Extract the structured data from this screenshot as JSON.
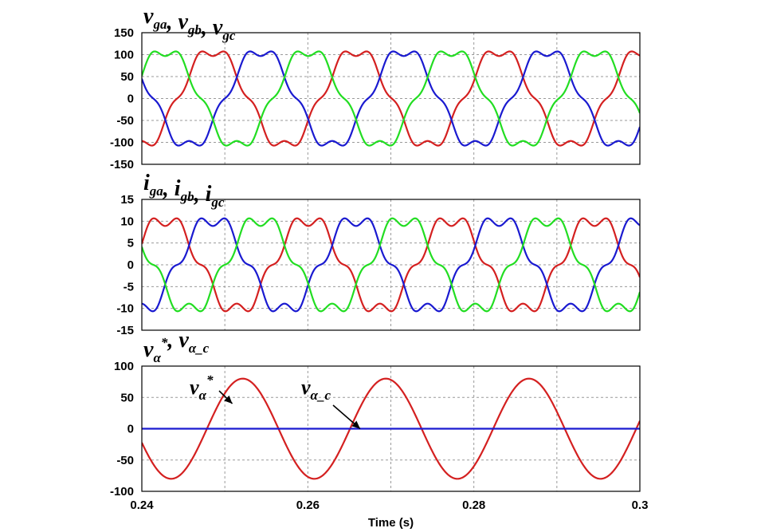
{
  "chart_data": [
    {
      "type": "line",
      "title_parts": [
        {
          "base": "v",
          "sub": "ga"
        },
        {
          "sep": ","
        },
        {
          "base": "v",
          "sub": "gb"
        },
        {
          "sep": ","
        },
        {
          "base": "v",
          "sub": "gc"
        }
      ],
      "xlim": [
        0.24,
        0.3
      ],
      "ylim": [
        -150,
        150
      ],
      "yticks": [
        "150",
        "100",
        "50",
        "0",
        "-50",
        "-100",
        "-150"
      ],
      "ytick_values": [
        150,
        100,
        50,
        0,
        -50,
        -100,
        -150
      ],
      "frequency_hz": 58,
      "series": [
        {
          "color": "#d42020",
          "amplitude": 110,
          "phase_deg": -60,
          "harmonic5": 0.12
        },
        {
          "color": "#1a1ad0",
          "amplitude": 110,
          "phase_deg": 180,
          "harmonic5": 0.12
        },
        {
          "color": "#22dd22",
          "amplitude": 110,
          "phase_deg": 60,
          "harmonic5": 0.12
        }
      ]
    },
    {
      "type": "line",
      "title_parts": [
        {
          "base": "i",
          "sub": "ga"
        },
        {
          "sep": ","
        },
        {
          "base": "i",
          "sub": "gb"
        },
        {
          "sep": ","
        },
        {
          "base": "i",
          "sub": "gc"
        }
      ],
      "xlim": [
        0.24,
        0.3
      ],
      "ylim": [
        -15,
        15
      ],
      "yticks": [
        "15",
        "10",
        "5",
        "0",
        "-5",
        "-10",
        "-15"
      ],
      "ytick_values": [
        15,
        10,
        5,
        0,
        -5,
        -10,
        -15
      ],
      "frequency_hz": 58,
      "series": [
        {
          "color": "#d42020",
          "amplitude": 10.6,
          "phase_deg": 60,
          "harmonic5": 0.16
        },
        {
          "color": "#1a1ad0",
          "amplitude": 10.6,
          "phase_deg": 300,
          "harmonic5": 0.16
        },
        {
          "color": "#22dd22",
          "amplitude": 10.6,
          "phase_deg": 180,
          "harmonic5": 0.16
        }
      ]
    },
    {
      "type": "line",
      "title_parts": [
        {
          "base": "v",
          "sub": "α",
          "sup": "*"
        },
        {
          "sep": ","
        },
        {
          "base": "v",
          "sub": "α_c"
        }
      ],
      "xlim": [
        0.24,
        0.3
      ],
      "ylim": [
        -100,
        100
      ],
      "yticks": [
        "100",
        "50",
        "0",
        "-50",
        "-100"
      ],
      "ytick_values": [
        100,
        50,
        0,
        -50,
        -100
      ],
      "xticks": [
        "0.24",
        "0.26",
        "0.28",
        "0.3"
      ],
      "xtick_values": [
        0.24,
        0.26,
        0.28,
        0.3
      ],
      "xlabel": "Time (s)",
      "frequency_hz": 58,
      "series": [
        {
          "color": "#d42020",
          "amplitude": 80,
          "phase_deg": 225,
          "harmonic5": 0
        },
        {
          "color": "#1a1ad0",
          "amplitude": 0,
          "phase_deg": 0,
          "harmonic5": 0
        }
      ],
      "annotations": [
        {
          "base": "v",
          "sub": "α",
          "sup": "*",
          "arrow_to": [
            0.2509,
            40
          ]
        },
        {
          "base": "v",
          "sub": "α_c",
          "arrow_to": [
            0.2663,
            0
          ]
        }
      ]
    }
  ]
}
